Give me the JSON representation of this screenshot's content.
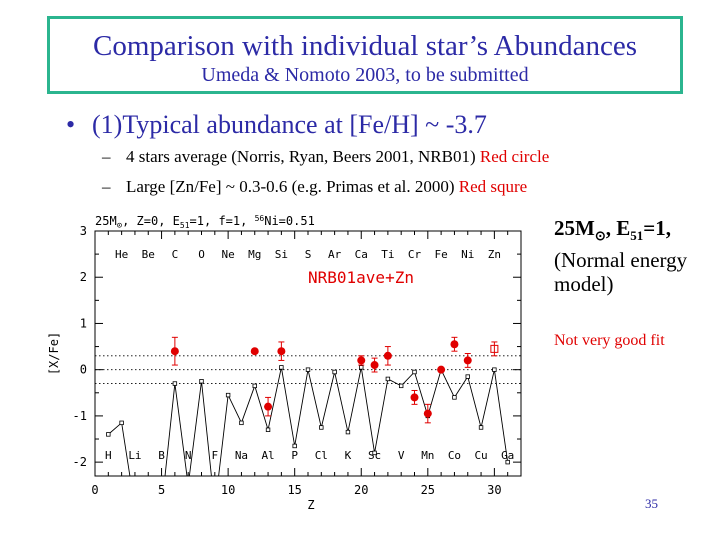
{
  "title": {
    "main": "Comparison with individual star’s Abundances",
    "sub": "Umeda & Nomoto 2003, to be submitted"
  },
  "bullet": {
    "marker": "•",
    "text": "(1)Typical abundance at [Fe/H] ~ -3.7"
  },
  "subbullets": [
    {
      "dash": "–",
      "text": "4 stars average (Norris, Ryan, Beers 2001, NRB01) ",
      "highlight": "Red circle"
    },
    {
      "dash": "–",
      "text": "Large [Zn/Fe] ~ 0.3-0.6 (e.g. Primas et al. 2000) ",
      "highlight": "Red squre"
    }
  ],
  "side": {
    "line1": "25M",
    "line1_sun": "⊙",
    "line1_rest": ", E",
    "line1_sub": "51",
    "line1_end": "=1,",
    "line2": "(Normal energy",
    "line3": "model)",
    "fit_note": "Not very good fit"
  },
  "page_number": "35",
  "colors": {
    "title": "#2c2aa6",
    "box_border": "#2bb58f",
    "obs": "#e00000",
    "model": "#000000"
  },
  "chart_data": {
    "type": "scatter",
    "title": "25M⊙, Z=0, E51=1, f=1, 56Ni=0.51",
    "title_parts": [
      "25M",
      "⊙",
      ",  Z=0,  E",
      "51",
      "=1,  f=1,  ",
      "56",
      "Ni=0.51"
    ],
    "annotation": "NRB01ave+Zn",
    "xlabel": "Z",
    "ylabel": "[X/Fe]",
    "xlim": [
      0,
      32
    ],
    "ylim": [
      -2.3,
      3
    ],
    "xticks": [
      0,
      5,
      10,
      15,
      20,
      25,
      30
    ],
    "yticks": [
      -2,
      -1,
      0,
      1,
      2,
      3
    ],
    "dotted_lines": [
      0.3,
      0,
      -0.3
    ],
    "top_elements": [
      {
        "z": 2,
        "s": "He"
      },
      {
        "z": 4,
        "s": "Be"
      },
      {
        "z": 6,
        "s": "C"
      },
      {
        "z": 8,
        "s": "O"
      },
      {
        "z": 10,
        "s": "Ne"
      },
      {
        "z": 12,
        "s": "Mg"
      },
      {
        "z": 14,
        "s": "Si"
      },
      {
        "z": 16,
        "s": "S"
      },
      {
        "z": 18,
        "s": "Ar"
      },
      {
        "z": 20,
        "s": "Ca"
      },
      {
        "z": 22,
        "s": "Ti"
      },
      {
        "z": 24,
        "s": "Cr"
      },
      {
        "z": 26,
        "s": "Fe"
      },
      {
        "z": 28,
        "s": "Ni"
      },
      {
        "z": 30,
        "s": "Zn"
      }
    ],
    "bottom_elements": [
      {
        "z": 1,
        "s": "H"
      },
      {
        "z": 3,
        "s": "Li"
      },
      {
        "z": 5,
        "s": "B"
      },
      {
        "z": 7,
        "s": "N"
      },
      {
        "z": 9,
        "s": "F"
      },
      {
        "z": 11,
        "s": "Na"
      },
      {
        "z": 13,
        "s": "Al"
      },
      {
        "z": 15,
        "s": "P"
      },
      {
        "z": 17,
        "s": "Cl"
      },
      {
        "z": 19,
        "s": "K"
      },
      {
        "z": 21,
        "s": "Sc"
      },
      {
        "z": 23,
        "s": "V"
      },
      {
        "z": 25,
        "s": "Mn"
      },
      {
        "z": 27,
        "s": "Co"
      },
      {
        "z": 29,
        "s": "Cu"
      },
      {
        "z": 31,
        "s": "Ga"
      }
    ],
    "model": {
      "name": "model",
      "points": [
        [
          1,
          -1.4
        ],
        [
          2,
          -1.15
        ],
        [
          3,
          -3.0
        ],
        [
          4,
          -3.0
        ],
        [
          5,
          -3.0
        ],
        [
          6,
          -0.3
        ],
        [
          7,
          -2.5
        ],
        [
          8,
          -0.25
        ],
        [
          9,
          -3.0
        ],
        [
          10,
          -0.55
        ],
        [
          11,
          -1.15
        ],
        [
          12,
          -0.35
        ],
        [
          13,
          -1.3
        ],
        [
          14,
          0.05
        ],
        [
          15,
          -1.65
        ],
        [
          16,
          0.0
        ],
        [
          17,
          -1.25
        ],
        [
          18,
          -0.05
        ],
        [
          19,
          -1.35
        ],
        [
          20,
          0.05
        ],
        [
          21,
          -1.8
        ],
        [
          22,
          -0.2
        ],
        [
          23,
          -0.35
        ],
        [
          24,
          -0.05
        ],
        [
          25,
          -1.0
        ],
        [
          26,
          0.0
        ],
        [
          27,
          -0.6
        ],
        [
          28,
          -0.15
        ],
        [
          29,
          -1.25
        ],
        [
          30,
          0.0
        ],
        [
          31,
          -2.0
        ]
      ]
    },
    "observed_circles": {
      "name": "NRB01 average",
      "points": [
        {
          "z": 6,
          "y": 0.4,
          "err": 0.3
        },
        {
          "z": 12,
          "y": 0.4,
          "err": 0.0
        },
        {
          "z": 13,
          "y": -0.8,
          "err": 0.2
        },
        {
          "z": 14,
          "y": 0.4,
          "err": 0.2
        },
        {
          "z": 20,
          "y": 0.2,
          "err": 0.1
        },
        {
          "z": 21,
          "y": 0.1,
          "err": 0.15
        },
        {
          "z": 22,
          "y": 0.3,
          "err": 0.2
        },
        {
          "z": 24,
          "y": -0.6,
          "err": 0.15
        },
        {
          "z": 25,
          "y": -0.95,
          "err": 0.2
        },
        {
          "z": 26,
          "y": 0.0,
          "err": 0.0
        },
        {
          "z": 27,
          "y": 0.55,
          "err": 0.15
        },
        {
          "z": 28,
          "y": 0.2,
          "err": 0.15
        }
      ]
    },
    "observed_squares": {
      "name": "Zn",
      "points": [
        {
          "z": 30,
          "y": 0.45,
          "err": 0.15
        }
      ]
    }
  }
}
